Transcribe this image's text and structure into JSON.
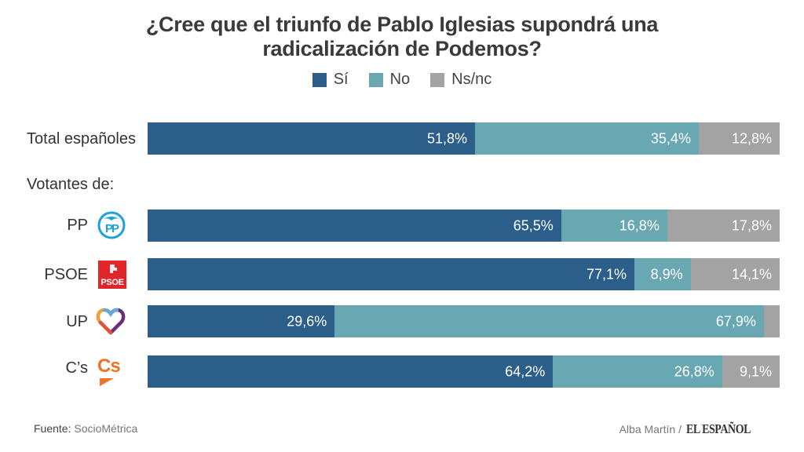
{
  "colors": {
    "si": "#2b5f8a",
    "no": "#69a7b2",
    "nsnc": "#a3a3a3"
  },
  "chart_data": {
    "type": "bar",
    "orientation": "horizontal",
    "stacked": true,
    "title": "¿Cree que el triunfo de Pablo Iglesias supondrá una radicalización de Podemos?",
    "title_lines": [
      "¿Cree que el triunfo de Pablo Iglesias supondrá una",
      "radicalización de Podemos?"
    ],
    "legend": [
      "Sí",
      "No",
      "Ns/nc"
    ],
    "legend_position": "top-center",
    "section_label": "Votantes de:",
    "categories": [
      "Total españoles",
      "PP",
      "PSOE",
      "UP",
      "C’s"
    ],
    "series": [
      {
        "name": "Sí",
        "values": [
          51.8,
          65.5,
          77.1,
          29.6,
          64.2
        ],
        "labels": [
          "51,8%",
          "65,5%",
          "77,1%",
          "29,6%",
          "64,2%"
        ]
      },
      {
        "name": "No",
        "values": [
          35.4,
          16.8,
          8.9,
          67.9,
          26.8
        ],
        "labels": [
          "35,4%",
          "16,8%",
          "8,9%",
          "67,9%",
          "26,8%"
        ]
      },
      {
        "name": "Ns/nc",
        "values": [
          12.8,
          17.8,
          14.1,
          2.5,
          9.1
        ],
        "labels": [
          "12,8%",
          "17,8%",
          "14,1%",
          "",
          "9,1%"
        ]
      }
    ],
    "xlim": [
      0,
      100
    ],
    "grid": false
  },
  "party_logos": [
    "",
    "pp-logo",
    "psoe-logo",
    "up-logo",
    "cs-logo"
  ],
  "logo_text": {
    "pp": "PP",
    "psoe": "PSOE",
    "cs": "Cs"
  },
  "footer": {
    "source_label": "Fuente:",
    "source": "SocioMétrica",
    "author": "Alba Martín /",
    "brand": "EL ESPAÑOL"
  }
}
